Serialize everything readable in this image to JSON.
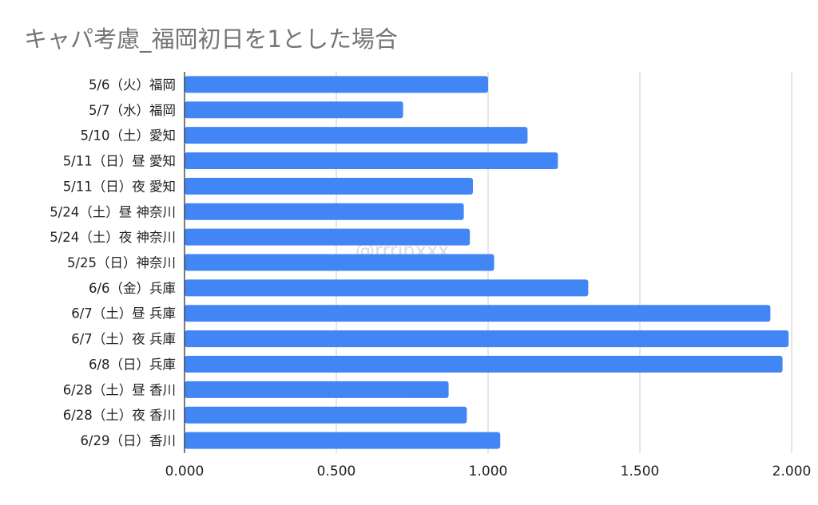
{
  "title": "キャパ考慮_福岡初日を1とした場合",
  "watermark": "@rrrinxxx",
  "colors": {
    "bar": "#4285f4",
    "grid": "#cccccc",
    "axis": "#333333",
    "text": "#222222",
    "title": "#757575"
  },
  "chart_data": {
    "type": "bar",
    "orientation": "horizontal",
    "title": "キャパ考慮_福岡初日を1とした場合",
    "xlabel": "",
    "ylabel": "",
    "xlim": [
      0,
      2.0
    ],
    "xticks": [
      "0.000",
      "0.500",
      "1.000",
      "1.500",
      "2.000"
    ],
    "grid": true,
    "categories": [
      "5/6（火）福岡",
      "5/7（水）福岡",
      "5/10（土）愛知",
      "5/11（日）昼 愛知",
      "5/11（日）夜 愛知",
      "5/24（土）昼 神奈川",
      "5/24（土）夜 神奈川",
      "5/25（日）神奈川",
      "6/6（金）兵庫",
      "6/7（土）昼 兵庫",
      "6/7（土）夜 兵庫",
      "6/8（日）兵庫",
      "6/28（土）昼 香川",
      "6/28（土）夜 香川",
      "6/29（日）香川"
    ],
    "values": [
      1.0,
      0.72,
      1.13,
      1.23,
      0.95,
      0.92,
      0.94,
      1.02,
      1.33,
      1.93,
      1.99,
      1.97,
      0.87,
      0.93,
      1.04
    ]
  }
}
